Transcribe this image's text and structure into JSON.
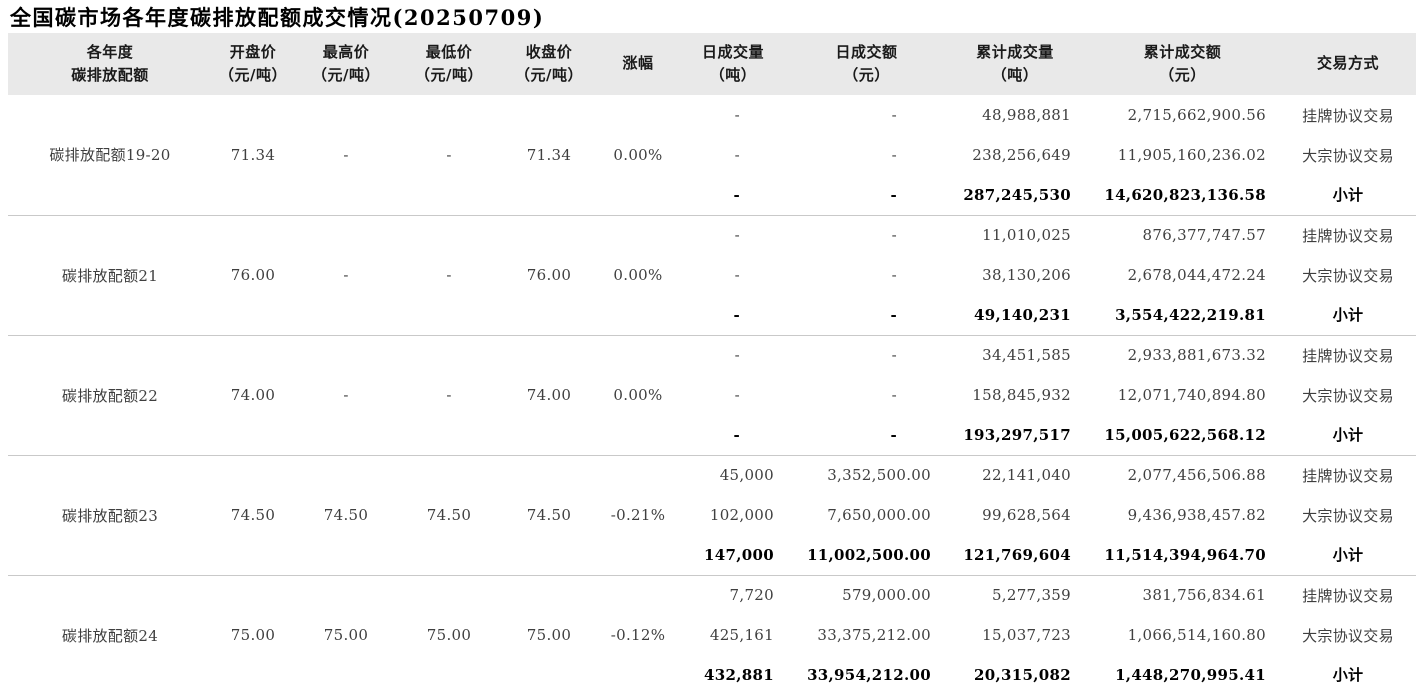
{
  "title": "全国碳市场各年度碳排放配额成交情况(20250709)",
  "table": {
    "columns": [
      {
        "id": "name",
        "line1": "各年度",
        "line2": "碳排放配额"
      },
      {
        "id": "open",
        "line1": "开盘价",
        "line2": "（元/吨）"
      },
      {
        "id": "high",
        "line1": "最高价",
        "line2": "（元/吨）"
      },
      {
        "id": "low",
        "line1": "最低价",
        "line2": "（元/吨）"
      },
      {
        "id": "close",
        "line1": "收盘价",
        "line2": "（元/吨）"
      },
      {
        "id": "change",
        "line1": "涨幅",
        "line2": ""
      },
      {
        "id": "daily_volume",
        "line1": "日成交量",
        "line2": "（吨）"
      },
      {
        "id": "daily_amount",
        "line1": "日成交额",
        "line2": "（元）"
      },
      {
        "id": "cum_volume",
        "line1": "累计成交量",
        "line2": "（吨）"
      },
      {
        "id": "cum_amount",
        "line1": "累计成交额",
        "line2": "（元）"
      },
      {
        "id": "method",
        "line1": "交易方式",
        "line2": ""
      }
    ],
    "groups": [
      {
        "name": "碳排放配额19-20",
        "open": "71.34",
        "high": "-",
        "low": "-",
        "close": "71.34",
        "change": "0.00%",
        "rows": [
          {
            "daily_volume": "-",
            "daily_amount": "-",
            "cum_volume": "48,988,881",
            "cum_amount": "2,715,662,900.56",
            "method": "挂牌协议交易",
            "subtotal": false
          },
          {
            "daily_volume": "-",
            "daily_amount": "-",
            "cum_volume": "238,256,649",
            "cum_amount": "11,905,160,236.02",
            "method": "大宗协议交易",
            "subtotal": false
          },
          {
            "daily_volume": "-",
            "daily_amount": "-",
            "cum_volume": "287,245,530",
            "cum_amount": "14,620,823,136.58",
            "method": "小计",
            "subtotal": true
          }
        ]
      },
      {
        "name": "碳排放配额21",
        "open": "76.00",
        "high": "-",
        "low": "-",
        "close": "76.00",
        "change": "0.00%",
        "rows": [
          {
            "daily_volume": "-",
            "daily_amount": "-",
            "cum_volume": "11,010,025",
            "cum_amount": "876,377,747.57",
            "method": "挂牌协议交易",
            "subtotal": false
          },
          {
            "daily_volume": "-",
            "daily_amount": "-",
            "cum_volume": "38,130,206",
            "cum_amount": "2,678,044,472.24",
            "method": "大宗协议交易",
            "subtotal": false
          },
          {
            "daily_volume": "-",
            "daily_amount": "-",
            "cum_volume": "49,140,231",
            "cum_amount": "3,554,422,219.81",
            "method": "小计",
            "subtotal": true
          }
        ]
      },
      {
        "name": "碳排放配额22",
        "open": "74.00",
        "high": "-",
        "low": "-",
        "close": "74.00",
        "change": "0.00%",
        "rows": [
          {
            "daily_volume": "-",
            "daily_amount": "-",
            "cum_volume": "34,451,585",
            "cum_amount": "2,933,881,673.32",
            "method": "挂牌协议交易",
            "subtotal": false
          },
          {
            "daily_volume": "-",
            "daily_amount": "-",
            "cum_volume": "158,845,932",
            "cum_amount": "12,071,740,894.80",
            "method": "大宗协议交易",
            "subtotal": false
          },
          {
            "daily_volume": "-",
            "daily_amount": "-",
            "cum_volume": "193,297,517",
            "cum_amount": "15,005,622,568.12",
            "method": "小计",
            "subtotal": true
          }
        ]
      },
      {
        "name": "碳排放配额23",
        "open": "74.50",
        "high": "74.50",
        "low": "74.50",
        "close": "74.50",
        "change": "-0.21%",
        "rows": [
          {
            "daily_volume": "45,000",
            "daily_amount": "3,352,500.00",
            "cum_volume": "22,141,040",
            "cum_amount": "2,077,456,506.88",
            "method": "挂牌协议交易",
            "subtotal": false
          },
          {
            "daily_volume": "102,000",
            "daily_amount": "7,650,000.00",
            "cum_volume": "99,628,564",
            "cum_amount": "9,436,938,457.82",
            "method": "大宗协议交易",
            "subtotal": false
          },
          {
            "daily_volume": "147,000",
            "daily_amount": "11,002,500.00",
            "cum_volume": "121,769,604",
            "cum_amount": "11,514,394,964.70",
            "method": "小计",
            "subtotal": true
          }
        ]
      },
      {
        "name": "碳排放配额24",
        "open": "75.00",
        "high": "75.00",
        "low": "75.00",
        "close": "75.00",
        "change": "-0.12%",
        "rows": [
          {
            "daily_volume": "7,720",
            "daily_amount": "579,000.00",
            "cum_volume": "5,277,359",
            "cum_amount": "381,756,834.61",
            "method": "挂牌协议交易",
            "subtotal": false
          },
          {
            "daily_volume": "425,161",
            "daily_amount": "33,375,212.00",
            "cum_volume": "15,037,723",
            "cum_amount": "1,066,514,160.80",
            "method": "大宗协议交易",
            "subtotal": false
          },
          {
            "daily_volume": "432,881",
            "daily_amount": "33,954,212.00",
            "cum_volume": "20,315,082",
            "cum_amount": "1,448,270,995.41",
            "method": "小计",
            "subtotal": true
          }
        ]
      }
    ]
  },
  "colors": {
    "header_bg": "#e9e9e9",
    "divider": "#c9c9c9",
    "body_text": "#3f3f3f",
    "subtotal_text": "#000000"
  }
}
